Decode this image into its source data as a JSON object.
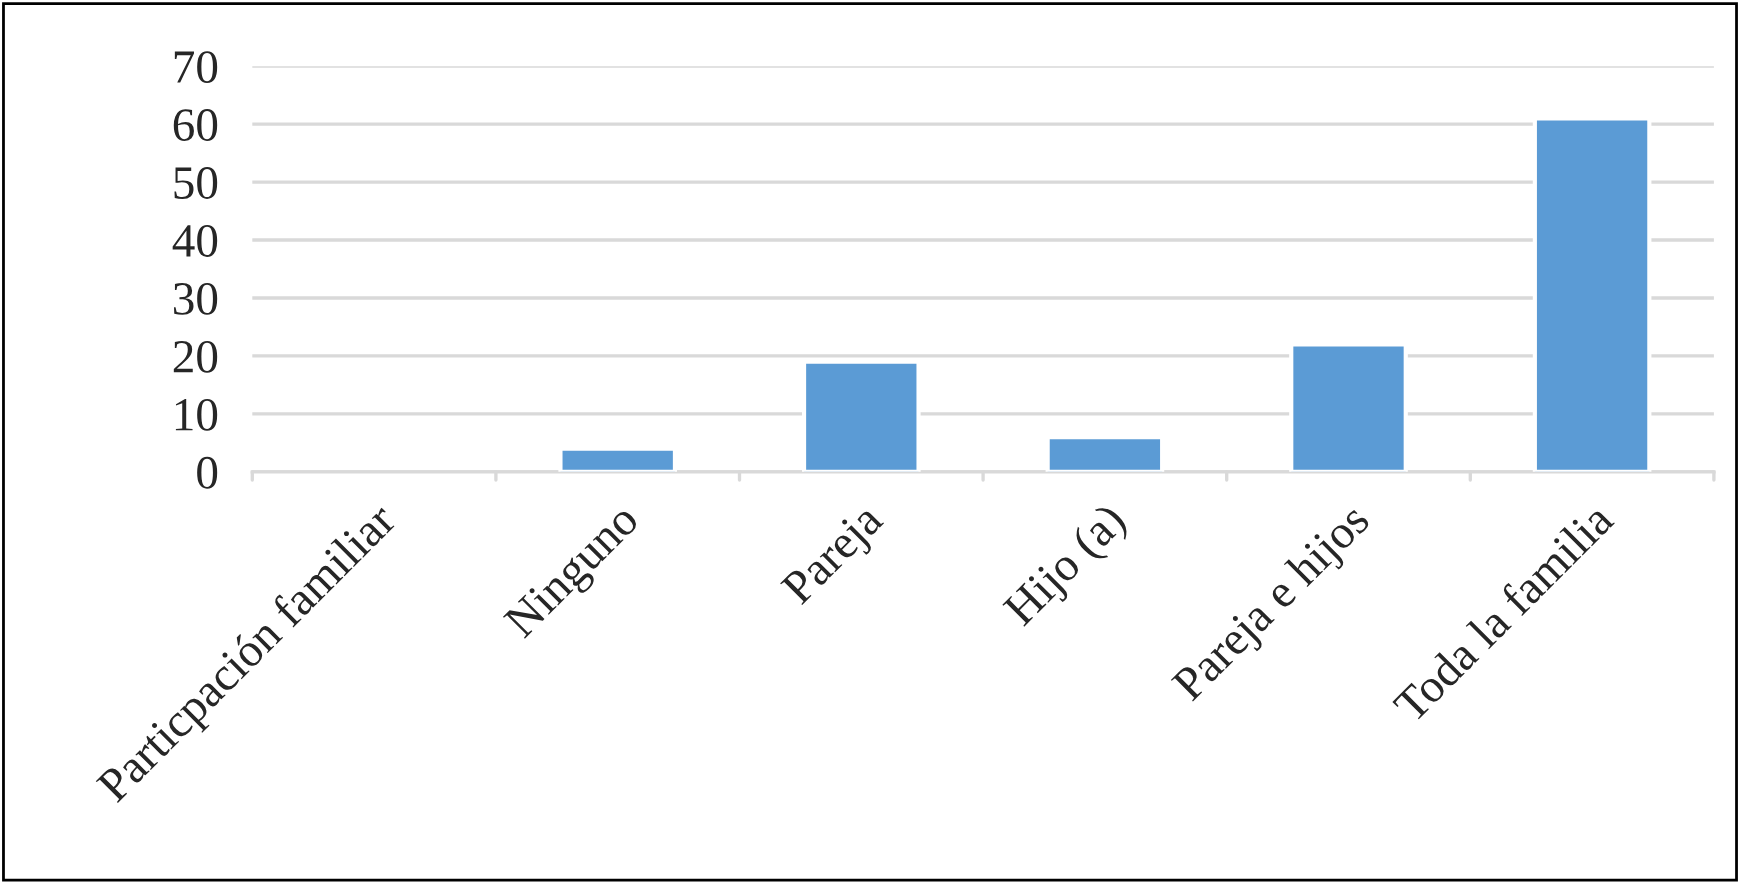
{
  "chart_data": {
    "type": "bar",
    "categories": [
      "Particpación familiar",
      "Ninguno",
      "Pareja",
      "Hijo (a)",
      "Pareja e hijos",
      "Toda la familia"
    ],
    "values": [
      null,
      4,
      19,
      6,
      22,
      61
    ],
    "color": "#5b9bd5",
    "ylim": [
      0,
      70
    ],
    "yticks": [
      0,
      10,
      20,
      30,
      40,
      50,
      60,
      70
    ],
    "grid": "y",
    "legend": false
  }
}
